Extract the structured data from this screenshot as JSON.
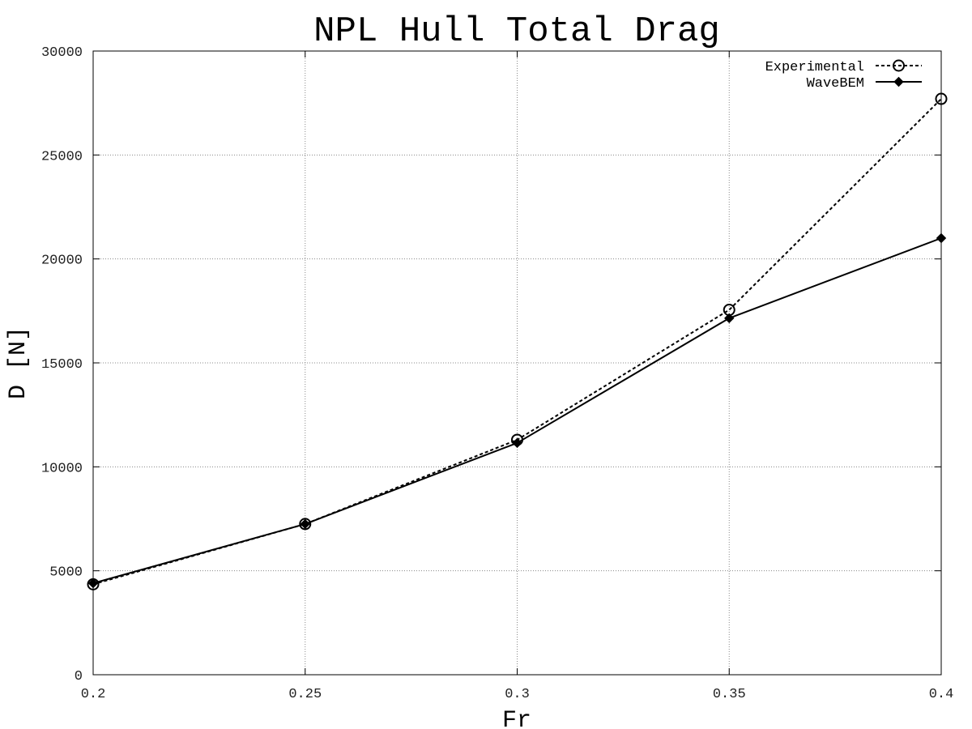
{
  "chart_data": {
    "type": "line",
    "title": "NPL Hull Total Drag",
    "xlabel": "Fr",
    "ylabel": "D [N]",
    "xlim": [
      0.2,
      0.4
    ],
    "ylim": [
      0,
      30000
    ],
    "x_ticks": [
      "0.2",
      "0.25",
      "0.3",
      "0.35",
      "0.4"
    ],
    "y_ticks": [
      "0",
      "5000",
      "10000",
      "15000",
      "20000",
      "25000",
      "30000"
    ],
    "grid": true,
    "legend_position": "top-right",
    "series": [
      {
        "name": "Experimental",
        "style": "dashed",
        "marker": "open-circle",
        "color": "#000000",
        "x": [
          0.2,
          0.25,
          0.3,
          0.35,
          0.4
        ],
        "y": [
          4350,
          7250,
          11300,
          17550,
          27700
        ]
      },
      {
        "name": "WaveBEM",
        "style": "solid",
        "marker": "filled-diamond",
        "color": "#000000",
        "x": [
          0.2,
          0.25,
          0.3,
          0.35,
          0.4
        ],
        "y": [
          4400,
          7250,
          11150,
          17150,
          21000
        ]
      }
    ]
  }
}
